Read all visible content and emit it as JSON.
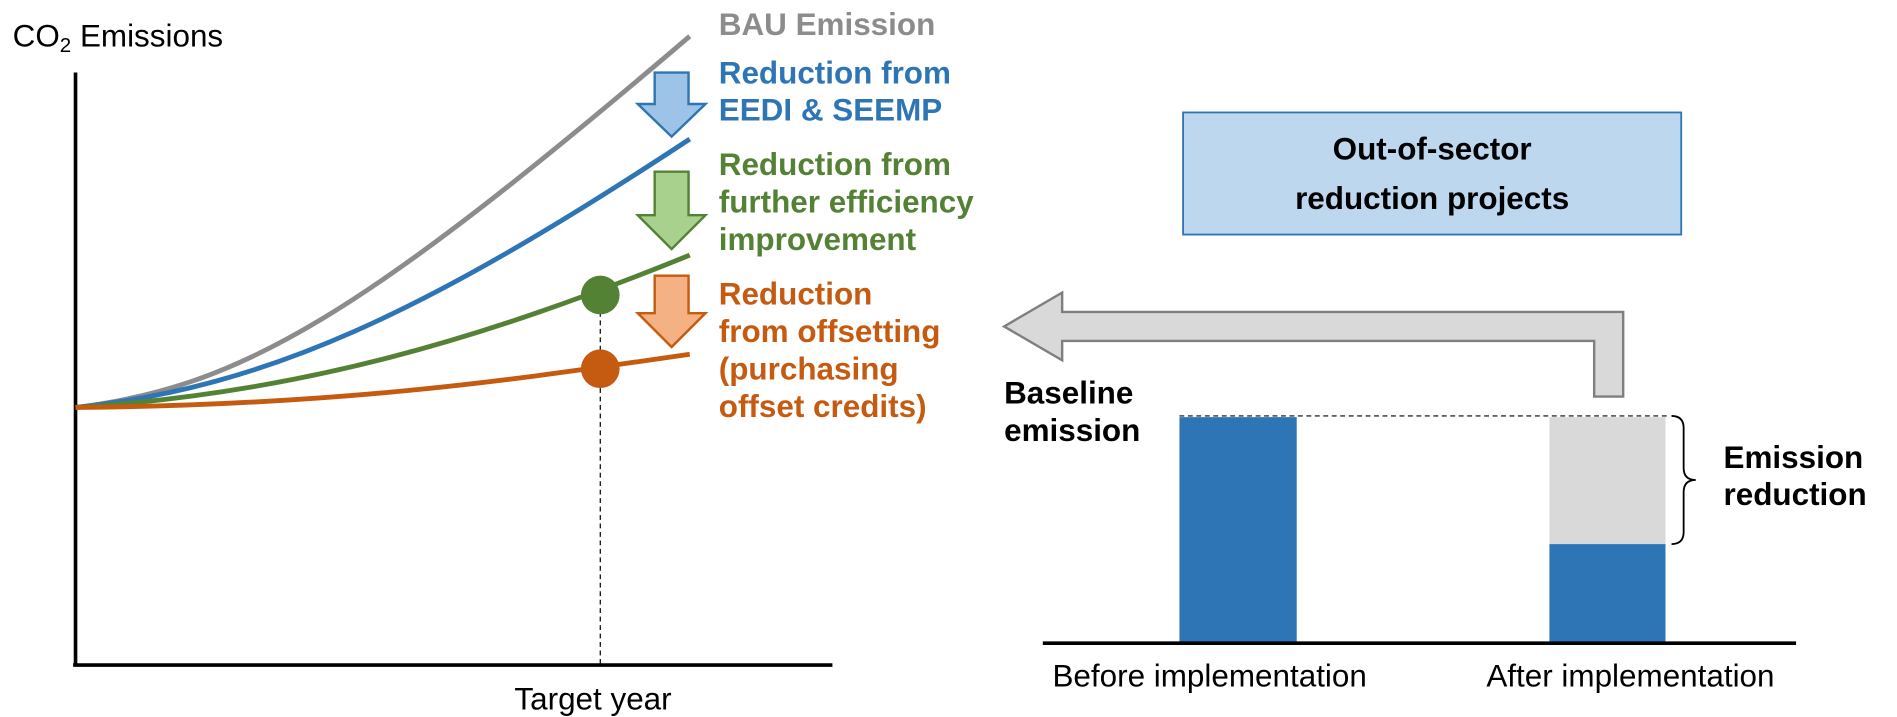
{
  "left_diagram": {
    "y_axis_label": {
      "main": "CO",
      "subscript": "2",
      "rest": " Emissions"
    },
    "x_axis_label": "Target year",
    "labels": [
      {
        "name": "bau",
        "lines": [
          "BAU Emission"
        ]
      },
      {
        "name": "eedi",
        "lines": [
          "Reduction from",
          "EEDI & SEEMP"
        ]
      },
      {
        "name": "efficiency",
        "lines": [
          "Reduction from",
          "further efficiency",
          "improvement"
        ]
      },
      {
        "name": "offsetting",
        "lines": [
          "Reduction",
          "from offsetting",
          "(purchasing",
          "offset credits)"
        ]
      }
    ]
  },
  "right_diagram": {
    "box": [
      "Out-of-sector",
      "reduction projects"
    ],
    "baseline_label": [
      "Baseline",
      "emission"
    ],
    "reduction_label": [
      "Emission",
      "reduction"
    ],
    "bars": [
      "Before implementation",
      "After implementation"
    ]
  }
}
